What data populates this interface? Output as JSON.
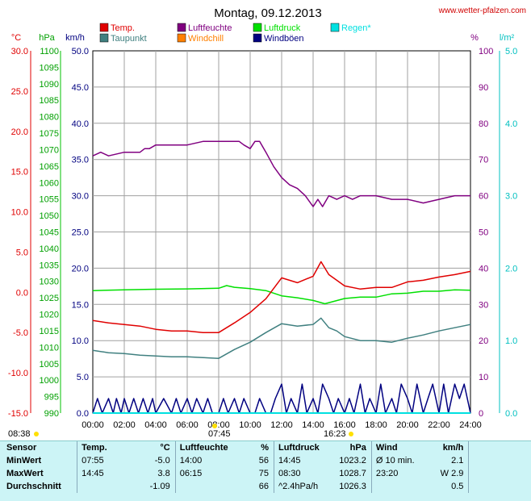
{
  "header": {
    "title": "Montag, 09.12.2013",
    "site": "www.wetter-pfalzen.com"
  },
  "legend": [
    {
      "label": "Temp.",
      "color": "#e00000"
    },
    {
      "label": "Luftfeuchte",
      "color": "#800080"
    },
    {
      "label": "Luftdruck",
      "color": "#00e000"
    },
    {
      "label": "Regen*",
      "color": "#00e0e0"
    },
    {
      "label": "Taupunkt",
      "color": "#408080"
    },
    {
      "label": "Windchill",
      "color": "#ff8000"
    },
    {
      "label": "Windböen",
      "color": "#000080"
    }
  ],
  "axes": {
    "units": {
      "temp": "°C",
      "pressure": "hPa",
      "wind": "km/h",
      "humidity": "%",
      "rain": "l/m²"
    },
    "temp_ticks": [
      "30.0",
      "25.0",
      "20.0",
      "15.0",
      "10.0",
      "5.0",
      "0.0",
      "-5.0",
      "-10.0",
      "-15.0"
    ],
    "pressure_ticks": [
      "1100",
      "1095",
      "1090",
      "1085",
      "1080",
      "1075",
      "1070",
      "1065",
      "1060",
      "1055",
      "1050",
      "1045",
      "1040",
      "1035",
      "1030",
      "1025",
      "1020",
      "1015",
      "1010",
      "1005",
      "1000",
      "995",
      "990"
    ],
    "wind_ticks": [
      "50.0",
      "45.0",
      "40.0",
      "35.0",
      "30.0",
      "25.0",
      "20.0",
      "15.0",
      "10.0",
      "5.0",
      "0.0"
    ],
    "humidity_ticks": [
      "100",
      "90",
      "80",
      "70",
      "60",
      "50",
      "40",
      "30",
      "20",
      "10",
      "0"
    ],
    "rain_ticks": [
      "5.0",
      "4.0",
      "3.0",
      "2.0",
      "1.0",
      "0.0"
    ],
    "x_ticks": [
      "00:00",
      "02:00",
      "04:00",
      "06:00",
      "08:00",
      "10:00",
      "12:00",
      "14:00",
      "16:00",
      "18:00",
      "20:00",
      "22:00",
      "24:00"
    ],
    "sunrise_label": "08:38",
    "sunrise_marker": "07:45",
    "sunset_marker": "16:23"
  },
  "chart_data": {
    "type": "line",
    "title": "Montag, 09.12.2013",
    "x_unit": "hours",
    "xlim": [
      0,
      24
    ],
    "grid": true,
    "series": [
      {
        "name": "Luftfeuchte",
        "axis": "humidity",
        "ylim": [
          0,
          100
        ],
        "color": "#800080",
        "x": [
          0,
          0.5,
          1,
          2,
          3,
          3.3,
          3.6,
          4,
          5,
          6,
          7,
          8,
          9,
          9.3,
          9.6,
          10,
          10.3,
          10.6,
          11,
          11.5,
          12,
          12.5,
          13,
          13.5,
          14,
          14.3,
          14.6,
          15,
          15.5,
          16,
          16.5,
          17,
          18,
          19,
          20,
          21,
          22,
          23,
          24
        ],
        "y": [
          71,
          72,
          71,
          72,
          72,
          73,
          73,
          74,
          74,
          74,
          75,
          75,
          75,
          75,
          74,
          73,
          75,
          75,
          72,
          68,
          65,
          63,
          62,
          60,
          57,
          59,
          57,
          60,
          59,
          60,
          59,
          60,
          60,
          59,
          59,
          58,
          59,
          60,
          60
        ]
      },
      {
        "name": "Temp.",
        "axis": "temp",
        "ylim": [
          -15,
          30
        ],
        "color": "#e00000",
        "x": [
          0,
          1,
          2,
          3,
          4,
          5,
          6,
          7,
          8,
          9,
          10,
          11,
          12,
          13,
          14,
          14.5,
          15,
          15.5,
          16,
          17,
          18,
          19,
          20,
          21,
          22,
          23,
          24
        ],
        "y": [
          -3.5,
          -3.8,
          -4.0,
          -4.2,
          -4.6,
          -4.8,
          -4.8,
          -5.0,
          -5.0,
          -3.8,
          -2.5,
          -0.8,
          1.8,
          1.2,
          2.0,
          3.8,
          2.2,
          1.5,
          0.8,
          0.4,
          0.6,
          0.6,
          1.3,
          1.5,
          1.9,
          2.2,
          2.6
        ]
      },
      {
        "name": "Luftdruck",
        "axis": "pressure",
        "ylim": [
          990,
          1100
        ],
        "color": "#00e000",
        "x": [
          0,
          2,
          4,
          6,
          8,
          8.5,
          9,
          10,
          11,
          12,
          13,
          14,
          14.75,
          16,
          17,
          18,
          19,
          20,
          21,
          22,
          23,
          24
        ],
        "y": [
          1027.2,
          1027.4,
          1027.6,
          1027.7,
          1027.9,
          1028.7,
          1028.2,
          1027.8,
          1027.2,
          1025.6,
          1025.0,
          1024.2,
          1023.2,
          1024.8,
          1025.2,
          1025.2,
          1026.2,
          1026.4,
          1027.0,
          1027.0,
          1027.4,
          1027.3
        ]
      },
      {
        "name": "Taupunkt",
        "axis": "temp",
        "ylim": [
          -15,
          30
        ],
        "color": "#408080",
        "x": [
          0,
          1,
          2,
          3,
          4,
          5,
          6,
          7,
          8,
          9,
          10,
          11,
          12,
          13,
          14,
          14.5,
          15,
          15.5,
          16,
          17,
          18,
          19,
          20,
          21,
          22,
          23,
          24
        ],
        "y": [
          -7.2,
          -7.5,
          -7.6,
          -7.8,
          -7.9,
          -8.0,
          -8.0,
          -8.1,
          -8.2,
          -7.1,
          -6.2,
          -5.0,
          -3.9,
          -4.2,
          -4.0,
          -3.2,
          -4.4,
          -4.8,
          -5.5,
          -6.0,
          -6.0,
          -6.2,
          -5.7,
          -5.3,
          -4.8,
          -4.4,
          -4.0
        ]
      },
      {
        "name": "Windböen",
        "axis": "wind",
        "ylim": [
          0,
          50
        ],
        "color": "#000080",
        "x": [
          0,
          0.3,
          0.6,
          1,
          1.3,
          1.5,
          1.8,
          2,
          2.3,
          2.6,
          2.9,
          3.2,
          3.5,
          3.8,
          4,
          4.5,
          5,
          5.3,
          5.6,
          6,
          6.3,
          6.6,
          7,
          7.3,
          7.6,
          8,
          8.3,
          8.6,
          9,
          9.3,
          9.6,
          10,
          10.3,
          10.6,
          11,
          11.3,
          11.6,
          12,
          12.3,
          12.6,
          13,
          13.3,
          13.6,
          14,
          14.3,
          14.6,
          15,
          15.3,
          15.6,
          16,
          16.3,
          16.6,
          17,
          17.3,
          17.6,
          18,
          18.3,
          18.6,
          19,
          19.3,
          19.6,
          20,
          20.3,
          20.6,
          21,
          21.3,
          21.6,
          22,
          22.3,
          22.6,
          23,
          23.3,
          23.6,
          24
        ],
        "y": [
          0,
          2,
          0,
          2,
          0,
          2,
          0,
          2,
          0,
          2,
          0,
          2,
          0,
          2,
          0,
          2,
          0,
          2,
          0,
          2,
          0,
          2,
          0,
          2,
          0,
          0,
          2,
          0,
          2,
          0,
          2,
          0,
          0,
          2,
          0,
          0,
          2,
          4,
          0,
          2,
          0,
          4,
          0,
          2,
          0,
          4,
          2,
          0,
          2,
          0,
          2,
          0,
          4,
          0,
          2,
          0,
          4,
          0,
          2,
          0,
          4,
          2,
          0,
          4,
          0,
          2,
          4,
          0,
          4,
          0,
          4,
          2,
          4,
          0
        ]
      },
      {
        "name": "Regen*",
        "axis": "rain",
        "ylim": [
          0,
          5
        ],
        "color": "#00e0e0",
        "x": [
          0,
          24
        ],
        "y": [
          0,
          0
        ]
      }
    ]
  },
  "stats": {
    "headers": [
      "Sensor",
      "Temp.",
      "°C",
      "Luftfeuchte",
      "%",
      "Luftdruck",
      "hPa",
      "Wind",
      "km/h"
    ],
    "rows": [
      {
        "sensor": "MinWert",
        "t_time": "07:55",
        "t_val": "-5.0",
        "h_time": "14:00",
        "h_val": "56",
        "p_time": "14:45",
        "p_val": "1023.2",
        "w_time": "Ø 10 min.",
        "w_val": "2.1"
      },
      {
        "sensor": "MaxWert",
        "t_time": "14:45",
        "t_val": "3.8",
        "h_time": "06:15",
        "h_val": "75",
        "p_time": "08:30",
        "p_val": "1028.7",
        "w_time": "23:20",
        "w_val": "W 2.9"
      },
      {
        "sensor": "Durchschnitt",
        "t_time": "",
        "t_val": "-1.09",
        "h_time": "",
        "h_val": "66",
        "p_time": "^2.4hPa/h",
        "p_val": "1026.3",
        "w_time": "",
        "w_val": "0.5"
      }
    ]
  },
  "colors": {
    "temp_axis": "#e00000",
    "pressure_axis": "#00c000",
    "humidity_axis": "#800080",
    "rain_axis": "#00c0c0",
    "stats_bg": "#ccf4f6",
    "sun": "#ffe000"
  }
}
